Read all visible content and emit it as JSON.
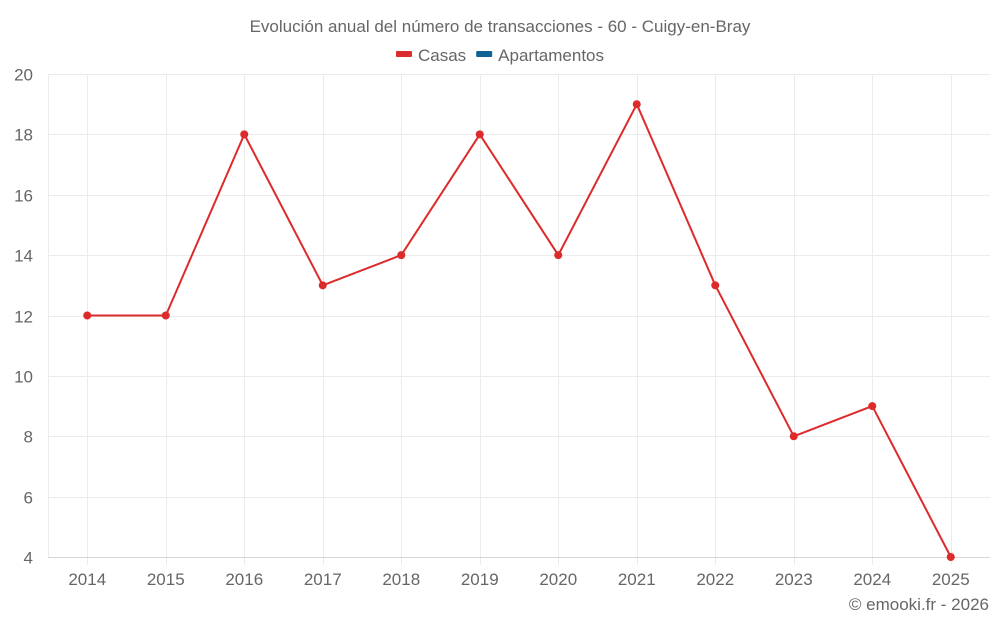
{
  "chart_data": {
    "type": "line",
    "title": "Evolución anual del número de transacciones - 60 - Cuigy-en-Bray",
    "categories": [
      "2014",
      "2015",
      "2016",
      "2017",
      "2018",
      "2019",
      "2020",
      "2021",
      "2022",
      "2023",
      "2024",
      "2025"
    ],
    "series": [
      {
        "name": "Casas",
        "color": "#dd2a2a",
        "values": [
          12,
          12,
          18,
          13,
          14,
          18,
          14,
          19,
          13,
          8,
          9,
          4
        ]
      },
      {
        "name": "Apartamentos",
        "color": "#0f6396",
        "values": []
      }
    ],
    "xlabel": "",
    "ylabel": "",
    "ylim": [
      4,
      20
    ],
    "yticks": [
      4,
      6,
      8,
      10,
      12,
      14,
      16,
      18,
      20
    ],
    "grid": true,
    "legend_position": "top-center"
  },
  "legend": [
    {
      "label": "Casas",
      "color": "#dd2a2a"
    },
    {
      "label": "Apartamentos",
      "color": "#0f6396"
    }
  ],
  "credit": "© emooki.fr - 2026"
}
